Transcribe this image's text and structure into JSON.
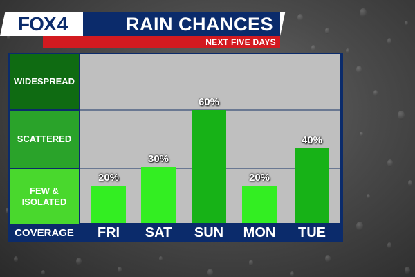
{
  "branding": {
    "logo_text": "FOX",
    "logo_number": "4"
  },
  "title": "RAIN CHANCES",
  "subtitle": "NEXT FIVE DAYS",
  "row_categories": [
    {
      "label": "WIDESPREAD",
      "color": "#0f6b12"
    },
    {
      "label": "SCATTERED",
      "color": "#2aa32a"
    },
    {
      "label": "FEW & ISOLATED",
      "color": "#49d82d"
    }
  ],
  "coverage_label": "COVERAGE",
  "chart_data": {
    "type": "bar",
    "title": "RAIN CHANCES",
    "subtitle": "NEXT FIVE DAYS",
    "categories": [
      "FRI",
      "SAT",
      "SUN",
      "MON",
      "TUE"
    ],
    "values": [
      20,
      30,
      60,
      20,
      40
    ],
    "value_labels": [
      "20%",
      "30%",
      "60%",
      "20%",
      "40%"
    ],
    "bar_colors": [
      "#33ee22",
      "#33ee22",
      "#17b217",
      "#33ee22",
      "#17b217"
    ],
    "ylim": [
      0,
      90
    ],
    "grid": true,
    "legend": "none"
  }
}
